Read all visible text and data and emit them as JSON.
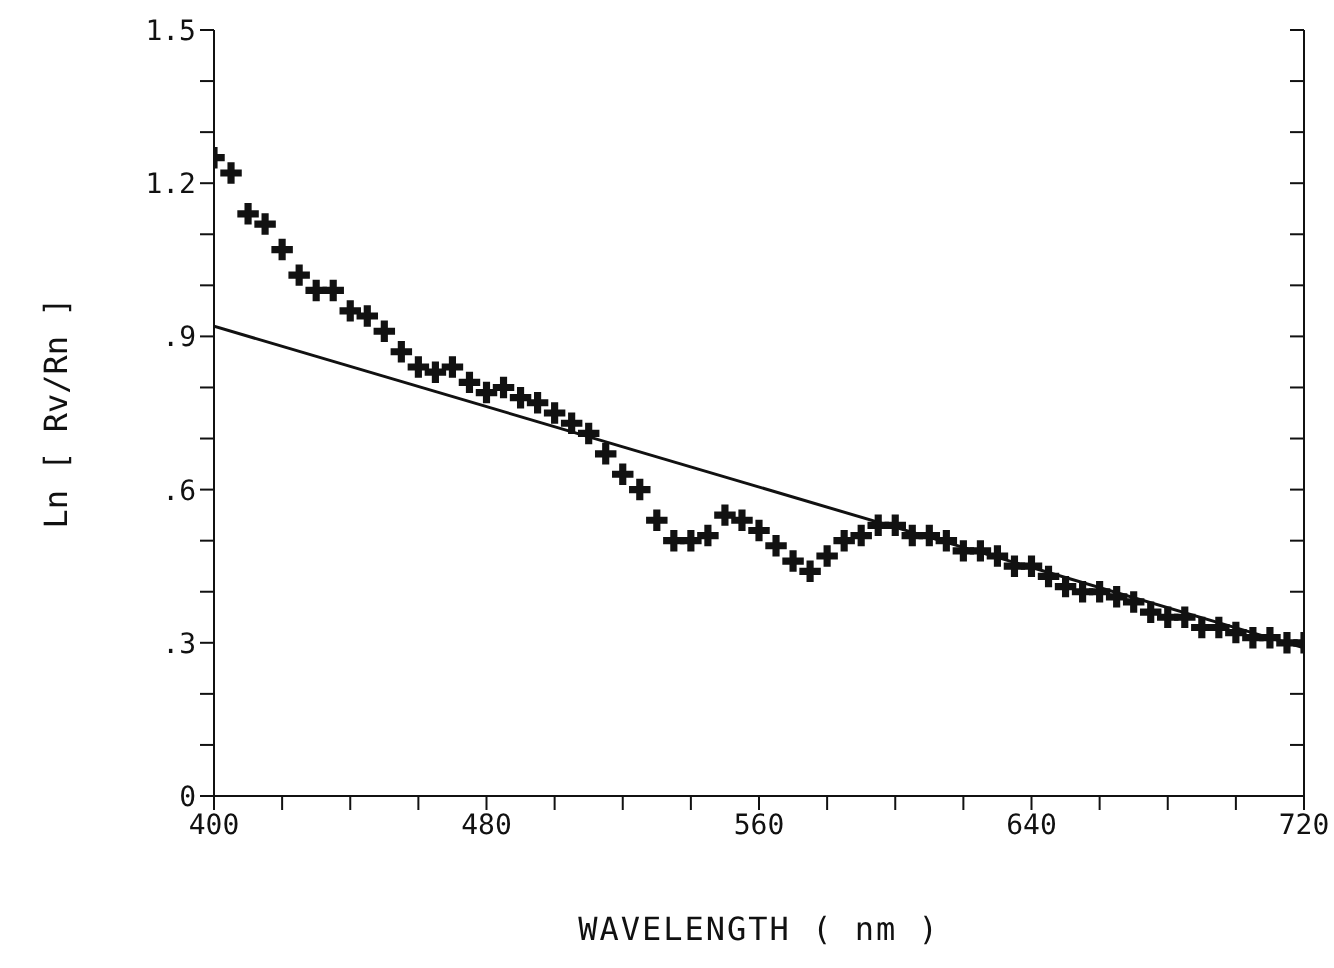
{
  "chart_data": {
    "type": "scatter",
    "xlabel": "WAVELENGTH ( nm )",
    "ylabel": "Ln [ Rv/Rn ]",
    "xlim": [
      400,
      720
    ],
    "xticks": [
      400,
      {
        "value": 420,
        "label": null
      },
      {
        "value": 440,
        "label": null
      },
      {
        "value": 460,
        "label": null
      },
      480,
      {
        "value": 500,
        "label": null
      },
      {
        "value": 520,
        "label": null
      },
      {
        "value": 540,
        "label": null
      },
      560,
      {
        "value": 580,
        "label": null
      },
      {
        "value": 600,
        "label": null
      },
      {
        "value": 620,
        "label": null
      },
      640,
      {
        "value": 660,
        "label": null
      },
      {
        "value": 680,
        "label": null
      },
      {
        "value": 700,
        "label": null
      },
      720
    ],
    "ylim": [
      0,
      1.5
    ],
    "yticks": [
      0,
      {
        "value": 0.1,
        "label": null
      },
      {
        "value": 0.2,
        "label": null
      },
      {
        "value": 0.3,
        "label": ".3"
      },
      {
        "value": 0.4,
        "label": null
      },
      {
        "value": 0.5,
        "label": null
      },
      {
        "value": 0.6,
        "label": ".6"
      },
      {
        "value": 0.7,
        "label": null
      },
      {
        "value": 0.8,
        "label": null
      },
      {
        "value": 0.9,
        "label": ".9"
      },
      {
        "value": 1.0,
        "label": null
      },
      {
        "value": 1.1,
        "label": null
      },
      {
        "value": 1.2,
        "label": "1.2"
      },
      {
        "value": 1.3,
        "label": null
      },
      {
        "value": 1.4,
        "label": null
      },
      {
        "value": 1.5,
        "label": "1.5"
      }
    ],
    "grid": false,
    "legend": false,
    "marker": "cross",
    "series": [
      {
        "color": "#111111",
        "x": [
          400,
          405,
          410,
          415,
          420,
          425,
          430,
          435,
          440,
          445,
          450,
          455,
          460,
          465,
          470,
          475,
          480,
          485,
          490,
          495,
          500,
          505,
          510,
          515,
          520,
          525,
          530,
          535,
          540,
          545,
          550,
          555,
          560,
          565,
          570,
          575,
          580,
          585,
          590,
          595,
          600,
          605,
          610,
          615,
          620,
          625,
          630,
          635,
          640,
          645,
          650,
          655,
          660,
          665,
          670,
          675,
          680,
          685,
          690,
          695,
          700,
          705,
          710,
          715,
          720
        ],
        "values": [
          1.25,
          1.22,
          1.14,
          1.12,
          1.07,
          1.02,
          0.99,
          0.99,
          0.95,
          0.94,
          0.91,
          0.87,
          0.84,
          0.83,
          0.84,
          0.81,
          0.79,
          0.8,
          0.78,
          0.77,
          0.75,
          0.73,
          0.71,
          0.67,
          0.63,
          0.6,
          0.54,
          0.5,
          0.5,
          0.51,
          0.55,
          0.54,
          0.52,
          0.49,
          0.46,
          0.44,
          0.47,
          0.5,
          0.51,
          0.53,
          0.53,
          0.51,
          0.51,
          0.5,
          0.48,
          0.48,
          0.47,
          0.45,
          0.45,
          0.43,
          0.41,
          0.4,
          0.4,
          0.39,
          0.38,
          0.36,
          0.35,
          0.35,
          0.33,
          0.33,
          0.32,
          0.31,
          0.31,
          0.3,
          0.3
        ]
      },
      {
        "type": "line",
        "color": "#111111",
        "marker": "none",
        "line_style": "solid",
        "x": [
          400,
          720
        ],
        "values": [
          0.92,
          0.29
        ]
      }
    ]
  }
}
